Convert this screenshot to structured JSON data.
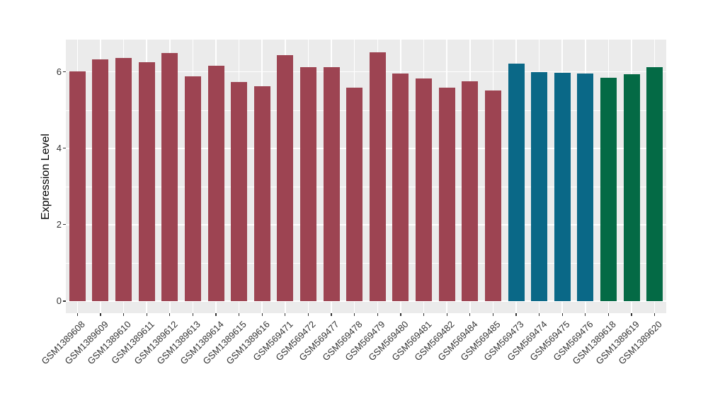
{
  "figure": {
    "background_color": "#FFFFFF",
    "panel_background_color": "#EBEBEB",
    "gridline_color": "#FFFFFF",
    "axis_text_color": "#333333",
    "axis_title_color": "#000000"
  },
  "palette": {
    "group1_red": "#9D4452",
    "group2_blue": "#0A6887",
    "group3_green": "#046A45"
  },
  "chart_data": {
    "type": "bar",
    "title": "",
    "xlabel": "",
    "ylabel": "Expression Level",
    "ylim": [
      0,
      6.84
    ],
    "yticks": [
      0,
      2,
      4,
      6
    ],
    "yticks_minor": [
      1,
      3,
      5
    ],
    "grid": "on",
    "legend": "none",
    "categories": [
      "GSM1389608",
      "GSM1389609",
      "GSM1389610",
      "GSM1389611",
      "GSM1389612",
      "GSM1389613",
      "GSM1389614",
      "GSM1389615",
      "GSM1389616",
      "GSM569471",
      "GSM569472",
      "GSM569477",
      "GSM569478",
      "GSM569479",
      "GSM569480",
      "GSM569481",
      "GSM569482",
      "GSM569484",
      "GSM569485",
      "GSM569473",
      "GSM569474",
      "GSM569475",
      "GSM569476",
      "GSM1389618",
      "GSM1389619",
      "GSM1389620"
    ],
    "values": [
      6.02,
      6.33,
      6.37,
      6.25,
      6.5,
      5.88,
      6.17,
      5.73,
      5.62,
      6.44,
      6.13,
      6.13,
      5.59,
      6.51,
      5.96,
      5.83,
      5.59,
      5.75,
      5.51,
      6.21,
      6.0,
      5.98,
      5.95,
      5.85,
      5.93,
      6.13
    ],
    "bar_colors": [
      "#9D4452",
      "#9D4452",
      "#9D4452",
      "#9D4452",
      "#9D4452",
      "#9D4452",
      "#9D4452",
      "#9D4452",
      "#9D4452",
      "#9D4452",
      "#9D4452",
      "#9D4452",
      "#9D4452",
      "#9D4452",
      "#9D4452",
      "#9D4452",
      "#9D4452",
      "#9D4452",
      "#9D4452",
      "#0A6887",
      "#0A6887",
      "#0A6887",
      "#0A6887",
      "#046A45",
      "#046A45",
      "#046A45"
    ]
  }
}
